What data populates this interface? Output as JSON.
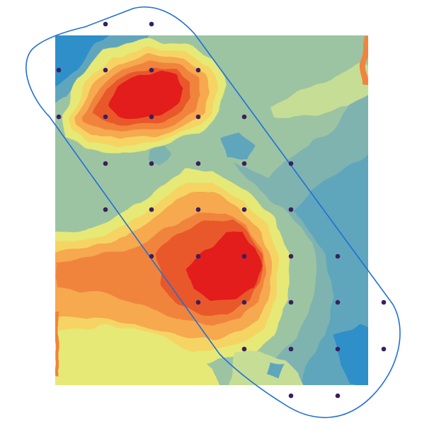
{
  "map": {
    "colors": {
      "background": "#ffffff",
      "boundary": "#1f6fd6",
      "sample_point": "#3b1f5e",
      "palette_low_to_high": [
        "#2e8fc9",
        "#5ea6bd",
        "#7fb3b0",
        "#9cc4a3",
        "#c6dd95",
        "#e6e975",
        "#f6d463",
        "#f6a950",
        "#f1843e",
        "#e9582b",
        "#e31a1c"
      ]
    },
    "layers": [
      "interpolated-surface",
      "survey-boundary",
      "sample-points"
    ],
    "sample_point_count": 35
  }
}
